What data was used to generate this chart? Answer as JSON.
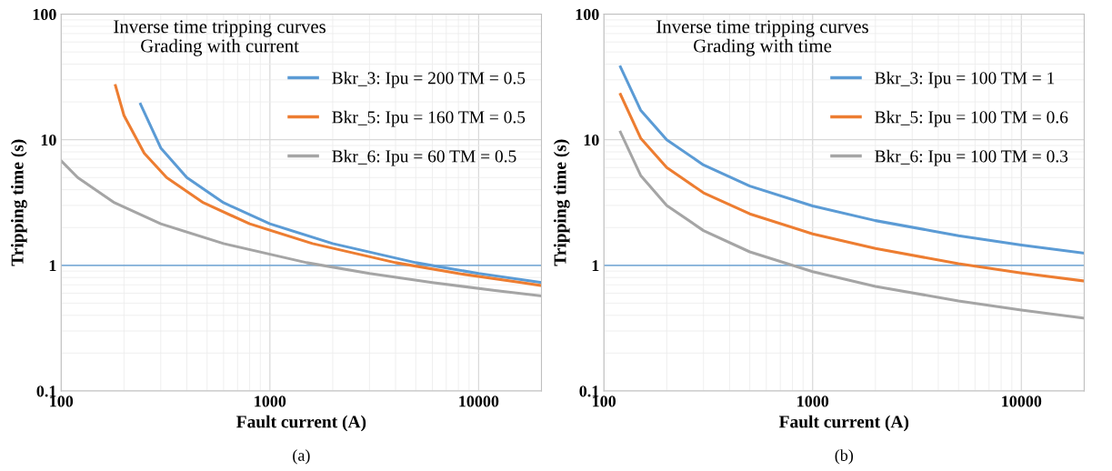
{
  "chart_data": [
    {
      "type": "line",
      "title": "Inverse time tripping curves\nGrading with current",
      "xlabel": "Fault current (A)",
      "ylabel": "Tripping time (s)",
      "log": "xy",
      "xlim": [
        100,
        20000
      ],
      "ylim": [
        0.1,
        100
      ],
      "xticks": [
        100,
        1000,
        10000
      ],
      "yticks": [
        0.1,
        1,
        10,
        100
      ],
      "grid": true,
      "legend": "top right",
      "line_style": "solid",
      "marker": "none",
      "ref_lines": [
        {
          "axis": "y",
          "value": 1,
          "color": "#5b9bd5"
        }
      ],
      "annotations": [
        "(a)"
      ],
      "series": [
        {
          "name": "Bkr_3: Ipu = 200 TM = 0.5",
          "color": "#5b9bd5",
          "x": [
            240,
            300,
            400,
            600,
            1000,
            2000,
            5000,
            10000,
            20000
          ],
          "values": [
            19.2,
            8.6,
            5.0,
            3.15,
            2.14,
            1.49,
            1.05,
            0.86,
            0.73
          ]
        },
        {
          "name": "Bkr_5: Ipu = 160 TM = 0.5",
          "color": "#ed7d31",
          "x": [
            182,
            200,
            250,
            320,
            480,
            800,
            1600,
            4000,
            8000,
            16000,
            20000
          ],
          "values": [
            27,
            15.6,
            7.8,
            5.0,
            3.15,
            2.14,
            1.49,
            1.05,
            0.86,
            0.73,
            0.69
          ]
        },
        {
          "name": "Bkr_6: Ipu = 60 TM = 0.5",
          "color": "#a5a5a5",
          "x": [
            100,
            120,
            180,
            300,
            600,
            1500,
            3000,
            6000,
            12000,
            20000
          ],
          "values": [
            6.8,
            5.0,
            3.15,
            2.14,
            1.49,
            1.05,
            0.86,
            0.73,
            0.63,
            0.57
          ]
        }
      ]
    },
    {
      "type": "line",
      "title": "Inverse time tripping curves\nGrading with time",
      "xlabel": "Fault current (A)",
      "ylabel": "Tripping time (s)",
      "log": "xy",
      "xlim": [
        100,
        20000
      ],
      "ylim": [
        0.1,
        100
      ],
      "xticks": [
        100,
        1000,
        10000
      ],
      "yticks": [
        0.1,
        1,
        10,
        100
      ],
      "grid": true,
      "legend": "top right",
      "line_style": "solid",
      "marker": "none",
      "ref_lines": [
        {
          "axis": "y",
          "value": 1,
          "color": "#5b9bd5"
        }
      ],
      "annotations": [
        "(b)"
      ],
      "series": [
        {
          "name": "Bkr_3: Ipu = 100 TM = 1",
          "color": "#5b9bd5",
          "x": [
            120,
            150,
            200,
            300,
            500,
            1000,
            2000,
            5000,
            10000,
            20000
          ],
          "values": [
            38,
            17.2,
            10.0,
            6.3,
            4.28,
            2.97,
            2.27,
            1.72,
            1.45,
            1.25
          ]
        },
        {
          "name": "Bkr_5: Ipu = 100 TM = 0.6",
          "color": "#ed7d31",
          "x": [
            120,
            150,
            200,
            300,
            500,
            1000,
            2000,
            5000,
            10000,
            20000
          ],
          "values": [
            23,
            10.3,
            6.0,
            3.78,
            2.57,
            1.78,
            1.36,
            1.03,
            0.87,
            0.75
          ]
        },
        {
          "name": "Bkr_6: Ipu = 100 TM = 0.3",
          "color": "#a5a5a5",
          "x": [
            120,
            150,
            200,
            300,
            500,
            1000,
            2000,
            5000,
            10000,
            20000
          ],
          "values": [
            11.5,
            5.2,
            3.0,
            1.89,
            1.28,
            0.89,
            0.68,
            0.52,
            0.44,
            0.38
          ]
        }
      ]
    }
  ]
}
